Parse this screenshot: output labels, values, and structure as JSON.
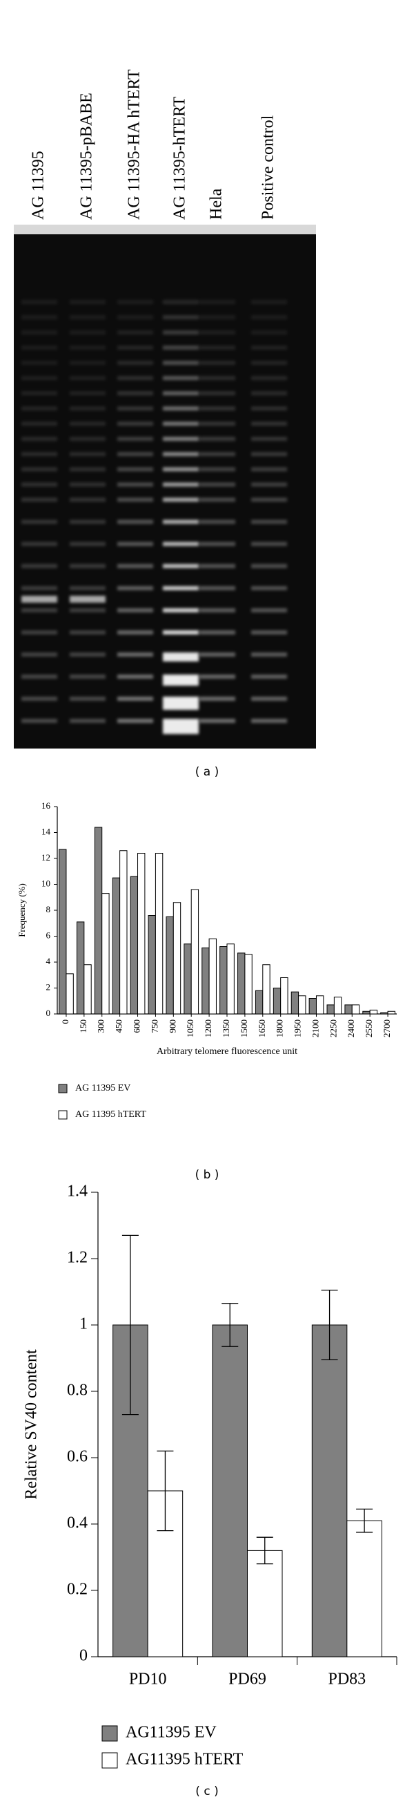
{
  "figure_a": {
    "lanes": [
      "AG 11395",
      "AG 11395-pBABE",
      "AG 11395-HA hTERT",
      "AG 11395-hTERT",
      "Hela",
      "Positive control"
    ],
    "caption": "( a )"
  },
  "chart_data": [
    {
      "type": "bar",
      "caption": "( b )",
      "xlabel": "Arbitrary telomere fluorescence unit",
      "ylabel": "Frequency (%)",
      "categories": [
        "0",
        "150",
        "300",
        "450",
        "600",
        "750",
        "900",
        "1050",
        "1200",
        "1350",
        "1500",
        "1650",
        "1800",
        "1950",
        "2100",
        "2250",
        "2400",
        "2550",
        "2700"
      ],
      "series": [
        {
          "name": "AG 11395 EV",
          "color": "#808080",
          "values": [
            12.7,
            7.1,
            14.4,
            10.5,
            10.6,
            7.6,
            7.5,
            5.4,
            5.1,
            5.2,
            4.7,
            1.8,
            2.0,
            1.7,
            1.2,
            0.7,
            0.7,
            0.2,
            0.1
          ]
        },
        {
          "name": "AG 11395 hTERT",
          "color": "#ffffff",
          "values": [
            3.1,
            3.8,
            9.3,
            12.6,
            12.4,
            12.4,
            8.6,
            9.6,
            5.8,
            5.4,
            4.6,
            3.8,
            2.8,
            1.4,
            1.4,
            1.3,
            0.7,
            0.3,
            0.2
          ]
        }
      ],
      "ylim": [
        0,
        16
      ],
      "yticks": [
        0,
        2,
        4,
        6,
        8,
        10,
        12,
        14,
        16
      ]
    },
    {
      "type": "bar",
      "caption": "( c )",
      "ylabel": "Relative SV40 content",
      "categories": [
        "PD10",
        "PD69",
        "PD83"
      ],
      "series": [
        {
          "name": "AG11395 EV",
          "color": "#808080",
          "values": [
            1,
            1,
            1
          ],
          "errors": [
            0.27,
            0.065,
            0.105
          ]
        },
        {
          "name": "AG11395 hTERT",
          "color": "#ffffff",
          "values": [
            0.5,
            0.32,
            0.41
          ],
          "errors": [
            0.12,
            0.04,
            0.035
          ]
        }
      ],
      "ylim": [
        0,
        1.4
      ],
      "yticks": [
        0,
        0.2,
        0.4,
        0.6,
        0.8,
        1,
        1.2,
        1.4
      ]
    }
  ]
}
